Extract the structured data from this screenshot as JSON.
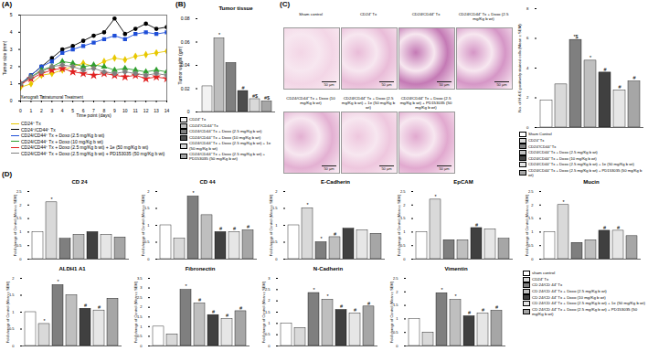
{
  "chart_data": [
    {
      "type": "line",
      "panel": "(A)",
      "x_label": "Time point (days)",
      "y_label": "Tumor size (mm)",
      "xlim": [
        0,
        14
      ],
      "xticks": [
        0,
        1,
        2,
        3,
        4,
        5,
        6,
        7,
        8,
        9,
        10,
        11,
        12,
        13,
        14
      ],
      "ylim": [
        0,
        5
      ],
      "yticks": [
        0,
        1,
        2,
        3,
        4,
        5
      ],
      "x": [
        0,
        1,
        2,
        3,
        4,
        5,
        6,
        7,
        8,
        9,
        10,
        11,
        12,
        13,
        14
      ],
      "annotations": [
        {
          "text": "Xenograft Tx",
          "x": 0
        },
        {
          "text": "Intratumoral Treatment",
          "x": 2
        }
      ],
      "series": [
        {
          "name": "CD24⁺ Tx",
          "color": "#e8c800",
          "marker": "diamond",
          "values": [
            0.8,
            1.0,
            1.5,
            1.6,
            1.8,
            2.0,
            2.2,
            2.0,
            2.3,
            2.5,
            2.4,
            2.6,
            2.7,
            2.8,
            2.9
          ]
        },
        {
          "name": "CD24⁺/CD44⁺ Tx",
          "color": "#000000",
          "marker": "circle",
          "values": [
            1.0,
            1.5,
            2.0,
            2.5,
            3.0,
            3.2,
            3.5,
            3.8,
            4.0,
            4.8,
            3.9,
            4.2,
            4.5,
            4.2,
            4.3
          ]
        },
        {
          "name": "CD24/CD44⁺ Tx + Doxo (2.5 mg/Kg b wt)",
          "color": "#1f4fd8",
          "marker": "square",
          "values": [
            1.0,
            1.5,
            2.0,
            2.3,
            2.8,
            3.0,
            3.2,
            3.4,
            3.6,
            3.8,
            3.6,
            3.9,
            4.0,
            3.9,
            4.0
          ]
        },
        {
          "name": "CD24/CD44⁺ Tx + Doxo (10 mg/Kg b wt)",
          "color": "#2e9e2e",
          "marker": "triangle",
          "values": [
            1.0,
            1.4,
            1.8,
            2.0,
            2.3,
            2.2,
            2.0,
            2.1,
            2.0,
            1.8,
            1.9,
            1.8,
            1.7,
            1.8,
            1.7
          ]
        },
        {
          "name": "CD24/CD44⁺ Tx + Doxo (2.5 mg/Kg b wt) + 1e (50 mg/Kg b wt)",
          "color": "#e02020",
          "marker": "star",
          "values": [
            1.0,
            1.3,
            1.6,
            1.8,
            1.9,
            1.7,
            1.6,
            1.5,
            1.6,
            1.5,
            1.4,
            1.5,
            1.3,
            1.4,
            1.3
          ]
        },
        {
          "name": "CD24/CD44⁺ Tx + Doxo (2.5 mg/Kg b wt) + PD153035 (50 mg/Kg b wt)",
          "color": "#808080",
          "marker": "cross",
          "values": [
            1.0,
            1.4,
            1.7,
            2.0,
            2.1,
            2.0,
            1.8,
            1.9,
            1.7,
            1.6,
            1.7,
            1.6,
            1.5,
            1.6,
            1.5
          ]
        }
      ]
    },
    {
      "type": "bar",
      "panel": "(B)",
      "title": "Tumor tissue",
      "y_label": "Tumor weight (gm)",
      "ylim": [
        0,
        0.08
      ],
      "yticks": [
        0,
        0.02,
        0.04,
        0.06,
        0.08
      ],
      "tick_labels": "y",
      "categories": [
        "CD24⁺ Tx",
        "CD24⁺/CD44⁺ Tx",
        "CD24/CD44⁺ Tx + Doxo (2.5 mg/Kg b wt)",
        "CD24/CD44⁺ Tx + Doxo (10 mg/Kg b wt)",
        "CD24/CD44⁺ Tx + Doxo (2.5 mg/Kg b wt) + 1e (50 mg/Kg b wt)",
        "CD24/CD44⁺ Tx + Doxo (2.5 mg/Kg b wt) + PD153035 (50 mg/Kg b wt)"
      ],
      "values": [
        0.022,
        0.063,
        0.042,
        0.018,
        0.011,
        0.009
      ],
      "significance": [
        null,
        "*",
        null,
        "#",
        "#$",
        "#$"
      ],
      "colors": [
        "#f2f2f2",
        "#bdbdbd",
        "#7f7f7f",
        "#4d4d4d",
        "#d9d9d9",
        "#a6a6a6"
      ]
    },
    {
      "type": "bar",
      "y_label": "No. of H & E positively stained cells (Mean ± SEM)",
      "ylim": [
        0,
        8
      ],
      "yticks": [
        0,
        2,
        4,
        6,
        8
      ],
      "tick_labels": "y",
      "categories": [
        "Sham Control",
        "CD24⁺ Tx",
        "CD24⁺/CD44⁺ Tx",
        "CD24/CD44⁺ Tx + Doxo (2.5 mg/Kg b wt)",
        "CD24/CD44⁺ Tx + Doxo (10 mg/Kg b wt)",
        "CD24/CD44⁺ Tx + Doxo (2.5 mg/Kg b wt) + 1e (50 mg/Kg b wt)",
        "CD24/CD44⁺ Tx + Doxo (2.5 mg/Kg b wt) + PD153035 (50 mg/Kg b wt)"
      ],
      "values": [
        1.8,
        2.9,
        5.9,
        4.5,
        3.7,
        2.5,
        3.1
      ],
      "significance": [
        null,
        null,
        "*$",
        "*",
        "#",
        "#",
        "#"
      ],
      "colors": [
        "#ffffff",
        "#d9d9d9",
        "#7f7f7f",
        "#bfbfbf",
        "#404040",
        "#e6e6e6",
        "#a6a6a6"
      ]
    },
    {
      "type": "bar",
      "panel": "(D)",
      "title": "CD 24",
      "y_label": "Fold change of Control (Mean ± SEM)",
      "ylim": [
        0,
        2.5
      ],
      "yticks": [
        0,
        0.5,
        1,
        1.5,
        2,
        2.5
      ],
      "tick_labels": "y",
      "categories": [
        "sham control",
        "CD24⁺ Tx",
        "CD 24/CD 44⁺ Tx",
        "CD 24/CD 44⁺ Tx + Doxo (2.5 mg/Kg b wt)",
        "CD 24/CD 44⁺ Tx + Doxo (10 mg/Kg b wt)",
        "CD 24/CD 44⁺ Tx + Doxo (2.5 mg/Kg b wt) + 1e (50 mg/Kg b wt)",
        "CD 24/CD 44⁺ Tx + Doxo (2.5 mg/Kg b wt) + PD153035 (50 mg/Kg b wt)"
      ],
      "values": [
        1,
        2.1,
        0.75,
        0.9,
        1.0,
        0.9,
        0.8
      ],
      "significance": [
        null,
        "*",
        null,
        null,
        null,
        null,
        null
      ],
      "colors": [
        "#ffffff",
        "#d9d9d9",
        "#7f7f7f",
        "#bfbfbf",
        "#404040",
        "#e6e6e6",
        "#a6a6a6"
      ]
    },
    {
      "type": "bar",
      "title": "CD 44",
      "y_label": "Fold change of Control (Mean ± SEM)",
      "ylim": [
        0,
        2
      ],
      "yticks": [
        0,
        0.5,
        1,
        1.5,
        2
      ],
      "tick_labels": "y",
      "categories": [
        "sham control",
        "CD24⁺ Tx",
        "CD 24/CD 44⁺ Tx",
        "CD 24/CD 44⁺ Tx + Doxo (2.5 mg/Kg b wt)",
        "CD 24/CD 44⁺ Tx + Doxo (10 mg/Kg b wt)",
        "CD 24/CD 44⁺ Tx + Doxo (2.5 mg/Kg b wt) + 1e (50 mg/Kg b wt)",
        "CD 24/CD 44⁺ Tx + Doxo (2.5 mg/Kg b wt) + PD153035 (50 mg/Kg b wt)"
      ],
      "values": [
        1,
        0.6,
        1.85,
        1.3,
        0.8,
        0.8,
        0.85
      ],
      "significance": [
        null,
        null,
        "*",
        null,
        "#",
        "#",
        "#"
      ],
      "colors": [
        "#ffffff",
        "#d9d9d9",
        "#7f7f7f",
        "#bfbfbf",
        "#404040",
        "#e6e6e6",
        "#a6a6a6"
      ]
    },
    {
      "type": "bar",
      "title": "E-Cadherin",
      "y_label": "Fold change of Control (Mean ± SEM)",
      "ylim": [
        0,
        2
      ],
      "yticks": [
        0,
        0.5,
        1,
        1.5,
        2
      ],
      "tick_labels": "y",
      "categories": [
        "sham control",
        "CD24⁺ Tx",
        "CD 24/CD 44⁺ Tx",
        "CD 24/CD 44⁺ Tx + Doxo (2.5 mg/Kg b wt)",
        "CD 24/CD 44⁺ Tx + Doxo (10 mg/Kg b wt)",
        "CD 24/CD 44⁺ Tx + Doxo (2.5 mg/Kg b wt) + 1e (50 mg/Kg b wt)",
        "CD 24/CD 44⁺ Tx + Doxo (2.5 mg/Kg b wt) + PD153035 (50 mg/Kg b wt)"
      ],
      "values": [
        1,
        1.5,
        0.5,
        0.65,
        0.9,
        0.85,
        0.75
      ],
      "significance": [
        null,
        "*",
        "*",
        "#",
        null,
        null,
        null
      ],
      "colors": [
        "#ffffff",
        "#d9d9d9",
        "#7f7f7f",
        "#bfbfbf",
        "#404040",
        "#e6e6e6",
        "#a6a6a6"
      ]
    },
    {
      "type": "bar",
      "title": "EpCAM",
      "y_label": "Fold change of Control (Mean ± SEM)",
      "ylim": [
        0,
        2.5
      ],
      "yticks": [
        0,
        0.5,
        1,
        1.5,
        2,
        2.5
      ],
      "tick_labels": "y",
      "categories": [
        "sham control",
        "CD24⁺ Tx",
        "CD 24/CD 44⁺ Tx",
        "CD 24/CD 44⁺ Tx + Doxo (2.5 mg/Kg b wt)",
        "CD 24/CD 44⁺ Tx + Doxo (10 mg/Kg b wt)",
        "CD 24/CD 44⁺ Tx + Doxo (2.5 mg/Kg b wt) + 1e (50 mg/Kg b wt)",
        "CD 24/CD 44⁺ Tx + Doxo (2.5 mg/Kg b wt) + PD153035 (50 mg/Kg b wt)"
      ],
      "values": [
        1,
        2.2,
        0.7,
        0.7,
        1.15,
        1.1,
        0.75
      ],
      "significance": [
        null,
        "*",
        null,
        null,
        "#",
        null,
        null
      ],
      "colors": [
        "#ffffff",
        "#d9d9d9",
        "#7f7f7f",
        "#bfbfbf",
        "#404040",
        "#e6e6e6",
        "#a6a6a6"
      ]
    },
    {
      "type": "bar",
      "title": "Mucin",
      "y_label": "Fold change of Control (Mean ± SEM)",
      "ylim": [
        0,
        2.5
      ],
      "yticks": [
        0,
        0.5,
        1,
        1.5,
        2,
        2.5
      ],
      "tick_labels": "y",
      "categories": [
        "sham control",
        "CD24⁺ Tx",
        "CD 24/CD 44⁺ Tx",
        "CD 24/CD 44⁺ Tx + Doxo (2.5 mg/Kg b wt)",
        "CD 24/CD 44⁺ Tx + Doxo (10 mg/Kg b wt)",
        "CD 24/CD 44⁺ Tx + Doxo (2.5 mg/Kg b wt) + 1e (50 mg/Kg b wt)",
        "CD 24/CD 44⁺ Tx + Doxo (2.5 mg/Kg b wt) + PD153035 (50 mg/Kg b wt)"
      ],
      "values": [
        1,
        2.0,
        0.6,
        0.7,
        1.05,
        1.05,
        0.85
      ],
      "significance": [
        null,
        "*",
        null,
        null,
        "#",
        "#",
        null
      ],
      "colors": [
        "#ffffff",
        "#d9d9d9",
        "#7f7f7f",
        "#bfbfbf",
        "#404040",
        "#e6e6e6",
        "#a6a6a6"
      ]
    },
    {
      "type": "bar",
      "title": "ALDH1 A1",
      "y_label": "Fold change of Control (Mean ± SEM)",
      "ylim": [
        0,
        2
      ],
      "yticks": [
        0,
        0.5,
        1,
        1.5,
        2
      ],
      "tick_labels": "y",
      "categories": [
        "sham control",
        "CD24⁺ Tx",
        "CD 24/CD 44⁺ Tx",
        "CD 24/CD 44⁺ Tx + Doxo (2.5 mg/Kg b wt)",
        "CD 24/CD 44⁺ Tx + Doxo (10 mg/Kg b wt)",
        "CD 24/CD 44⁺ Tx + Doxo (2.5 mg/Kg b wt) + 1e (50 mg/Kg b wt)",
        "CD 24/CD 44⁺ Tx + Doxo (2.5 mg/Kg b wt) + PD153035 (50 mg/Kg b wt)"
      ],
      "values": [
        1,
        0.65,
        1.8,
        1.5,
        1.1,
        1.05,
        1.4
      ],
      "significance": [
        null,
        "*",
        "*",
        null,
        "#",
        "#",
        null
      ],
      "colors": [
        "#ffffff",
        "#d9d9d9",
        "#7f7f7f",
        "#bfbfbf",
        "#404040",
        "#e6e6e6",
        "#a6a6a6"
      ]
    },
    {
      "type": "bar",
      "title": "Fibronectin",
      "y_label": "Fold change of Control (Mean ± SEM)",
      "ylim": [
        0,
        3.5
      ],
      "yticks": [
        0,
        0.5,
        1,
        1.5,
        2,
        2.5,
        3,
        3.5
      ],
      "tick_labels": "y",
      "categories": [
        "sham control",
        "CD24⁺ Tx",
        "CD 24/CD 44⁺ Tx",
        "CD 24/CD 44⁺ Tx + Doxo (2.5 mg/Kg b wt)",
        "CD 24/CD 44⁺ Tx + Doxo (10 mg/Kg b wt)",
        "CD 24/CD 44⁺ Tx + Doxo (2.5 mg/Kg b wt) + 1e (50 mg/Kg b wt)",
        "CD 24/CD 44⁺ Tx + Doxo (2.5 mg/Kg b wt) + PD153035 (50 mg/Kg b wt)"
      ],
      "values": [
        1,
        0.6,
        2.9,
        2.2,
        1.6,
        1.4,
        1.8
      ],
      "significance": [
        null,
        null,
        "*",
        "#",
        "#",
        "#",
        "#"
      ],
      "colors": [
        "#ffffff",
        "#d9d9d9",
        "#7f7f7f",
        "#bfbfbf",
        "#404040",
        "#e6e6e6",
        "#a6a6a6"
      ]
    },
    {
      "type": "bar",
      "title": "N-Cadherin",
      "y_label": "Fold change of Control (Mean ± SEM)",
      "ylim": [
        0,
        3
      ],
      "yticks": [
        0,
        0.5,
        1,
        1.5,
        2,
        2.5,
        3
      ],
      "tick_labels": "y",
      "categories": [
        "sham control",
        "CD24⁺ Tx",
        "CD 24/CD 44⁺ Tx",
        "CD 24/CD 44⁺ Tx + Doxo (2.5 mg/Kg b wt)",
        "CD 24/CD 44⁺ Tx + Doxo (10 mg/Kg b wt)",
        "CD 24/CD 44⁺ Tx + Doxo (2.5 mg/Kg b wt) + 1e (50 mg/Kg b wt)",
        "CD 24/CD 44⁺ Tx + Doxo (2.5 mg/Kg b wt) + PD153035 (50 mg/Kg b wt)"
      ],
      "values": [
        1,
        0.8,
        2.35,
        2.05,
        1.6,
        1.45,
        1.75
      ],
      "significance": [
        null,
        null,
        "*",
        "*",
        "#",
        "#",
        "#"
      ],
      "colors": [
        "#ffffff",
        "#d9d9d9",
        "#7f7f7f",
        "#bfbfbf",
        "#404040",
        "#e6e6e6",
        "#a6a6a6"
      ]
    },
    {
      "type": "bar",
      "title": "Vimentin",
      "y_label": "Fold change of Control (Mean ± SEM)",
      "ylim": [
        0,
        2.5
      ],
      "yticks": [
        0,
        0.5,
        1,
        1.5,
        2,
        2.5
      ],
      "tick_labels": "y",
      "categories": [
        "sham control",
        "CD24⁺ Tx",
        "CD 24/CD 44⁺ Tx",
        "CD 24/CD 44⁺ Tx + Doxo (2.5 mg/Kg b wt)",
        "CD 24/CD 44⁺ Tx + Doxo (10 mg/Kg b wt)",
        "CD 24/CD 44⁺ Tx + Doxo (2.5 mg/Kg b wt) + 1e (50 mg/Kg b wt)",
        "CD 24/CD 44⁺ Tx + Doxo (2.5 mg/Kg b wt) + PD153035 (50 mg/Kg b wt)"
      ],
      "values": [
        1,
        0.5,
        1.95,
        1.7,
        1.1,
        1.2,
        1.3
      ],
      "significance": [
        null,
        null,
        "*",
        "*",
        "#",
        "#",
        "#"
      ],
      "colors": [
        "#ffffff",
        "#d9d9d9",
        "#7f7f7f",
        "#bfbfbf",
        "#404040",
        "#e6e6e6",
        "#a6a6a6"
      ]
    }
  ],
  "histology_images": {
    "panel": "(C)",
    "scale_bar": "50 µm",
    "labels": [
      "Sham control",
      "CD24⁺ Tx",
      "CD24/CD44⁺ Tx",
      "CD24/CD44⁺ Tx + Doxo (2.5 mg/Kg b wt)",
      "CD24/CD44⁺ Tx + Doxo (10 mg/Kg b wt)",
      "CD24/CD44⁺ Tx + Doxo (2.5 mg/Kg b wt) + 1e (50 mg/Kg b wt)",
      "CD24/CD44⁺ Tx + Doxo (2.5 mg/Kg b wt) + PD153035 (50 mg/Kg b wt)"
    ]
  }
}
